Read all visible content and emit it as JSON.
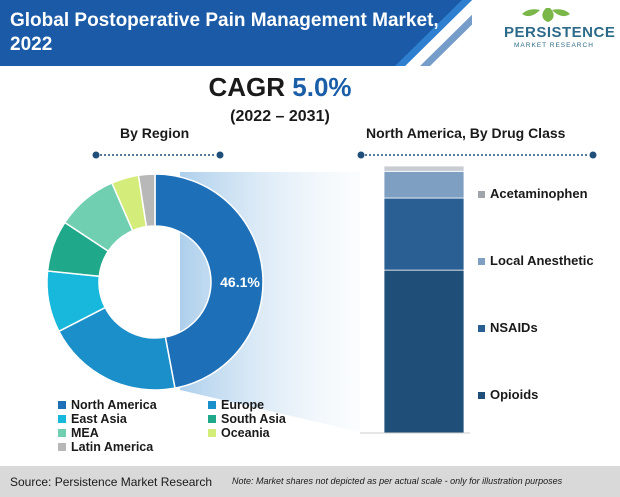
{
  "header": {
    "title": "Global Postoperative Pain Management Market, 2022",
    "logo_main": "PERSISTENCE",
    "logo_sub": "MARKET RESEARCH"
  },
  "cagr": {
    "label": "CAGR",
    "value": "5.0%",
    "period": "(2022 – 2031)"
  },
  "chart_data": [
    {
      "type": "pie",
      "title": "By Region",
      "center_label": "46.1%",
      "categories": [
        "North America",
        "Europe",
        "East Asia",
        "South Asia",
        "MEA",
        "Oceania",
        "Latin America"
      ],
      "values": [
        46.1,
        20.0,
        9.0,
        7.5,
        9.0,
        4.0,
        2.4
      ],
      "colors": [
        "#1d6fb8",
        "#1a8fc9",
        "#17b8dc",
        "#1fa88a",
        "#6fcfb0",
        "#d4ec7a",
        "#b8b8b8"
      ]
    },
    {
      "type": "bar",
      "title": "North America, By Drug Class",
      "categories": [
        "Opioids",
        "NSAIDs",
        "Local Anesthetic",
        "Acetaminophen"
      ],
      "values": [
        61,
        27,
        10,
        2
      ],
      "colors": [
        "#1f4e79",
        "#2a5f93",
        "#7e9fc2",
        "#c9ccd2"
      ]
    }
  ],
  "legend_items": [
    "North America",
    "Europe",
    "East Asia",
    "South Asia",
    "MEA",
    "Oceania",
    "Latin America"
  ],
  "footer": {
    "source": "Source: Persistence Market Research",
    "note": "Note: Market shares not depicted as per actual scale - only for illustration purposes"
  }
}
